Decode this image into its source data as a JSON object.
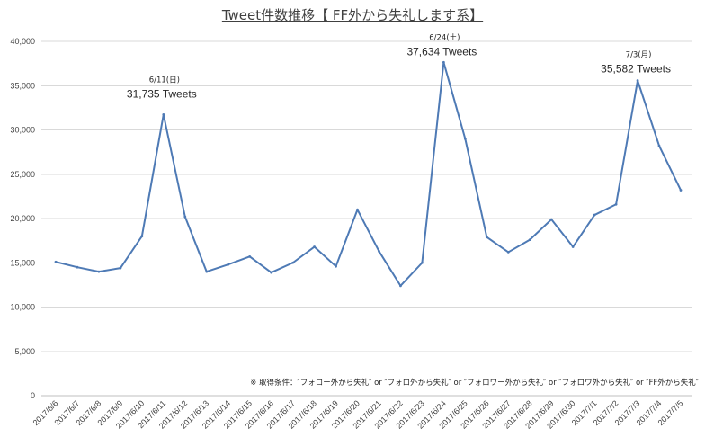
{
  "chart_data": {
    "type": "line",
    "title": "Tweet件数推移【 FF外から失礼します系】",
    "xlabel": "",
    "ylabel": "",
    "categories": [
      "2017/6/6",
      "2017/6/7",
      "2017/6/8",
      "2017/6/9",
      "2017/6/10",
      "2017/6/11",
      "2017/6/12",
      "2017/6/13",
      "2017/6/14",
      "2017/6/15",
      "2017/6/16",
      "2017/6/17",
      "2017/6/18",
      "2017/6/19",
      "2017/6/20",
      "2017/6/21",
      "2017/6/22",
      "2017/6/23",
      "2017/6/24",
      "2017/6/25",
      "2017/6/26",
      "2017/6/27",
      "2017/6/28",
      "2017/6/29",
      "2017/6/30",
      "2017/7/1",
      "2017/7/2",
      "2017/7/3",
      "2017/7/4",
      "2017/7/5"
    ],
    "series": [
      {
        "values": [
          15100,
          14500,
          14000,
          14400,
          18000,
          31735,
          20200,
          14000,
          14800,
          15700,
          13900,
          15000,
          16800,
          14600,
          21000,
          16300,
          12400,
          15000,
          37634,
          29000,
          17900,
          16200,
          17600,
          19900,
          16800,
          20400,
          21600,
          35582,
          28200,
          23200
        ]
      }
    ],
    "ylim": [
      0,
      40000
    ],
    "yticks": [
      0,
      5000,
      10000,
      15000,
      20000,
      25000,
      30000,
      35000,
      40000
    ],
    "ytick_labels": [
      "0",
      "5,000",
      "10,000",
      "15,000",
      "20,000",
      "25,000",
      "30,000",
      "35,000",
      "40,000"
    ],
    "grid": true,
    "annotations": [
      {
        "value": 31735,
        "date_label": "6/11(日)",
        "value_label": "31,735 Tweets"
      },
      {
        "value": 37634,
        "date_label": "6/24(土)",
        "value_label": "37,634 Tweets"
      },
      {
        "value": 35582,
        "date_label": "7/3(月)",
        "value_label": "35,582 Tweets"
      }
    ],
    "note": "※ 取得条件：″フォロー外から失礼″ or ″フォロ外から失礼″ or ″フォロワー外から失礼″ or ″フォロワ外から失礼″ or ″FF外から失礼″",
    "colors": {
      "line": "#4e7ab5",
      "grid": "#d9d9d9",
      "axis": "#bfbfbf"
    }
  }
}
